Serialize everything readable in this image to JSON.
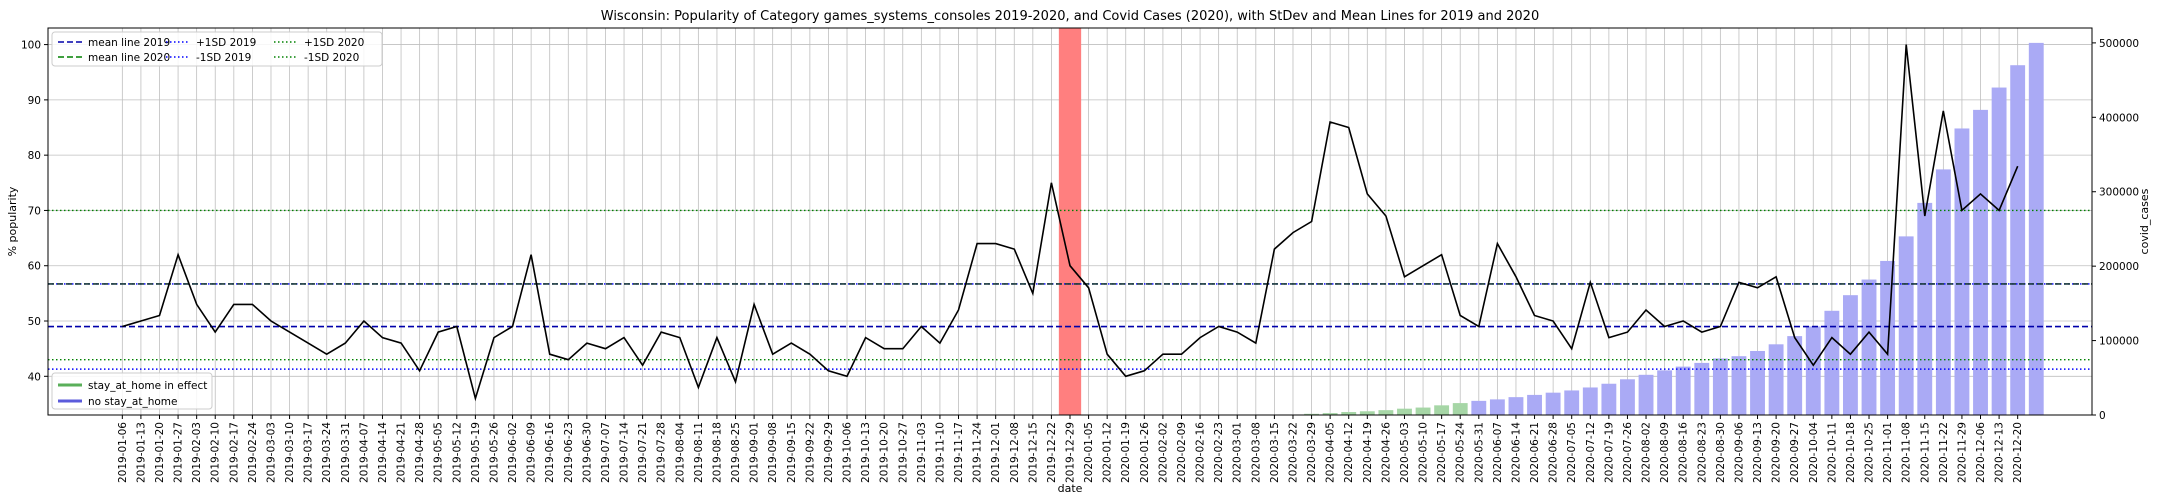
{
  "chart_data": {
    "type": "line+bar",
    "title": "Wisconsin: Popularity of Category games_systems_consoles 2019-2020, and Covid Cases (2020), with StDev and Mean Lines for 2019 and 2020",
    "xlabel": "date",
    "ylabel": "% popularity",
    "y2label": "covid_cases",
    "ylim": [
      33,
      103
    ],
    "y2lim": [
      0,
      520000
    ],
    "yticks": [
      40,
      50,
      60,
      70,
      80,
      90,
      100
    ],
    "y2ticks": [
      0,
      100000,
      200000,
      300000,
      400000,
      500000
    ],
    "grid": true,
    "dates": [
      "2019-01-06",
      "2019-01-13",
      "2019-01-20",
      "2019-01-27",
      "2019-02-03",
      "2019-02-10",
      "2019-02-17",
      "2019-02-24",
      "2019-03-03",
      "2019-03-10",
      "2019-03-17",
      "2019-03-24",
      "2019-03-31",
      "2019-04-07",
      "2019-04-14",
      "2019-04-21",
      "2019-04-28",
      "2019-05-05",
      "2019-05-12",
      "2019-05-19",
      "2019-05-26",
      "2019-06-02",
      "2019-06-09",
      "2019-06-16",
      "2019-06-23",
      "2019-06-30",
      "2019-07-07",
      "2019-07-14",
      "2019-07-21",
      "2019-07-28",
      "2019-08-04",
      "2019-08-11",
      "2019-08-18",
      "2019-08-25",
      "2019-09-01",
      "2019-09-08",
      "2019-09-15",
      "2019-09-22",
      "2019-09-29",
      "2019-10-06",
      "2019-10-13",
      "2019-10-20",
      "2019-10-27",
      "2019-11-03",
      "2019-11-10",
      "2019-11-17",
      "2019-11-24",
      "2019-12-01",
      "2019-12-08",
      "2019-12-15",
      "2019-12-22",
      "2019-12-29",
      "2020-01-05",
      "2020-01-12",
      "2020-01-19",
      "2020-01-26",
      "2020-02-02",
      "2020-02-09",
      "2020-02-16",
      "2020-02-23",
      "2020-03-01",
      "2020-03-08",
      "2020-03-15",
      "2020-03-22",
      "2020-03-29",
      "2020-04-05",
      "2020-04-12",
      "2020-04-19",
      "2020-04-26",
      "2020-05-03",
      "2020-05-10",
      "2020-05-17",
      "2020-05-24",
      "2020-05-31",
      "2020-06-07",
      "2020-06-14",
      "2020-06-21",
      "2020-06-28",
      "2020-07-05",
      "2020-07-12",
      "2020-07-19",
      "2020-07-26",
      "2020-08-02",
      "2020-08-09",
      "2020-08-16",
      "2020-08-23",
      "2020-08-30",
      "2020-09-06",
      "2020-09-13",
      "2020-09-20",
      "2020-09-27",
      "2020-10-04",
      "2020-10-11",
      "2020-10-18",
      "2020-10-25",
      "2020-11-01",
      "2020-11-08",
      "2020-11-15",
      "2020-11-22",
      "2020-11-29",
      "2020-12-06",
      "2020-12-13",
      "2020-12-20"
    ],
    "popularity": [
      49,
      50,
      51,
      62,
      53,
      48,
      53,
      53,
      50,
      48,
      46,
      44,
      46,
      50,
      47,
      46,
      41,
      48,
      49,
      36,
      47,
      49,
      62,
      44,
      43,
      46,
      45,
      47,
      42,
      48,
      47,
      38,
      47,
      39,
      53,
      44,
      46,
      44,
      41,
      40,
      47,
      45,
      45,
      49,
      46,
      52,
      64,
      64,
      63,
      55,
      75,
      60,
      56,
      44,
      40,
      41,
      44,
      44,
      47,
      49,
      48,
      46,
      63,
      66,
      68,
      86,
      85,
      73,
      69,
      58,
      60,
      62,
      51,
      49,
      64,
      58,
      51,
      50,
      45,
      57,
      47,
      48,
      52,
      49,
      50,
      48,
      49,
      57,
      56,
      58,
      47,
      42,
      47,
      44,
      48,
      44,
      100,
      69,
      88,
      70,
      73,
      70,
      78
    ],
    "covid_cases": [
      0,
      0,
      0,
      0,
      0,
      0,
      0,
      0,
      0,
      0,
      0,
      0,
      0,
      0,
      0,
      0,
      0,
      0,
      0,
      0,
      0,
      0,
      0,
      0,
      0,
      0,
      0,
      0,
      0,
      0,
      0,
      0,
      0,
      0,
      0,
      0,
      0,
      0,
      0,
      0,
      0,
      0,
      0,
      0,
      0,
      0,
      0,
      0,
      0,
      0,
      0,
      0,
      0,
      0,
      0,
      0,
      0,
      0,
      0,
      0,
      0,
      0,
      0,
      500,
      1600,
      2600,
      4000,
      5000,
      6500,
      8500,
      10000,
      13000,
      16000,
      19000,
      21000,
      24000,
      27000,
      30000,
      33000,
      37000,
      42000,
      48000,
      54000,
      60000,
      65000,
      70000,
      76000,
      79000,
      86000,
      95000,
      106000,
      119000,
      140000,
      161000,
      182000,
      207000,
      240000,
      285000,
      330000,
      385000,
      410000,
      440000,
      470000,
      500000
    ],
    "stay_at_home_start": "2020-03-29",
    "stay_at_home_end": "2020-05-24",
    "highlight_date": "2019-12-29",
    "mean_2019": 49,
    "mean_2020": 56.7,
    "sd_plus_2019": 56.7,
    "sd_minus_2019": 41.3,
    "sd_plus_2020": 70,
    "sd_minus_2020": 43,
    "legend": [
      {
        "label": "mean line 2019",
        "color": "#0000aa",
        "style": "dashed"
      },
      {
        "label": "mean line 2020",
        "color": "#008000",
        "style": "dashed"
      },
      {
        "label": "+1SD 2019",
        "color": "#0000ff",
        "style": "dotted"
      },
      {
        "label": "-1SD 2019",
        "color": "#0000ff",
        "style": "dotted"
      },
      {
        "label": "+1SD 2020",
        "color": "#008000",
        "style": "dotted"
      },
      {
        "label": "-1SD 2020",
        "color": "#008000",
        "style": "dotted"
      }
    ],
    "legend2": [
      {
        "label": "stay_at_home in effect",
        "color": "#5aaf5a"
      },
      {
        "label": "no stay_at_home",
        "color": "#5b5bdb"
      }
    ],
    "colors": {
      "line": "#000000",
      "bar_default": "#aaaaf5",
      "bar_stay": "#a6d6a6",
      "highlight": "#ff7f7f",
      "mean2019": "#0000aa",
      "mean2020": "#1a3a3a",
      "sd2019": "#0000ff",
      "sd2020": "#008000",
      "grid": "#bfbfbf"
    }
  }
}
